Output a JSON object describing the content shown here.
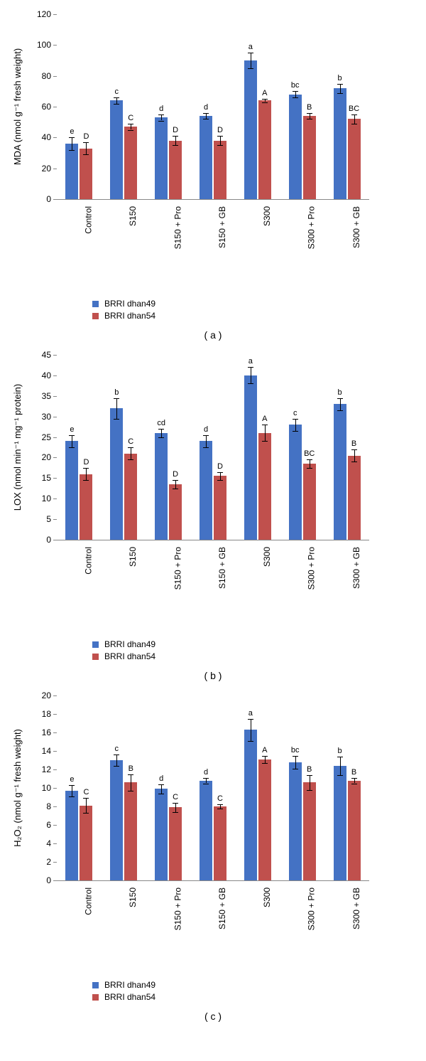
{
  "colors": {
    "series1": "#4472c4",
    "series2": "#c0504d",
    "axis": "#888888",
    "text": "#000000"
  },
  "legend": {
    "series1": "BRRI dhan49",
    "series2": "BRRI dhan54"
  },
  "categories": [
    "Control",
    "S150",
    "S150 + Pro",
    "S150 + GB",
    "S300",
    "S300 + Pro",
    "S300 + GB"
  ],
  "charts": [
    {
      "panel": "( a )",
      "ylabel": "MDA (nmol g⁻¹ fresh weight)",
      "ymin": 0,
      "ymax": 120,
      "ytick_step": 20,
      "series1": {
        "values": [
          36,
          64,
          53,
          54,
          90,
          68,
          72
        ],
        "errors": [
          4,
          2,
          2,
          2,
          5,
          2,
          3
        ],
        "letters": [
          "e",
          "c",
          "d",
          "d",
          "a",
          "bc",
          "b"
        ]
      },
      "series2": {
        "values": [
          33,
          47,
          38,
          38,
          64,
          54,
          52
        ],
        "errors": [
          4,
          2,
          3,
          3,
          1,
          2,
          3
        ],
        "letters": [
          "D",
          "C",
          "D",
          "D",
          "A",
          "B",
          "BC"
        ]
      }
    },
    {
      "panel": "( b )",
      "ylabel": "LOX (nmol min⁻¹ mg⁻¹ protein)",
      "ymin": 0,
      "ymax": 45,
      "ytick_step": 5,
      "series1": {
        "values": [
          24,
          32,
          26,
          24,
          40,
          28,
          33
        ],
        "errors": [
          1.5,
          2.5,
          1,
          1.5,
          2,
          1.5,
          1.5
        ],
        "letters": [
          "e",
          "b",
          "cd",
          "d",
          "a",
          "c",
          "b"
        ]
      },
      "series2": {
        "values": [
          16,
          21,
          13.5,
          15.5,
          26,
          18.5,
          20.5
        ],
        "errors": [
          1.5,
          1.5,
          1,
          1,
          2,
          1,
          1.5
        ],
        "letters": [
          "D",
          "C",
          "D",
          "D",
          "A",
          "BC",
          "B"
        ]
      }
    },
    {
      "panel": "( c )",
      "ylabel": "H₂O₂ (nmol g⁻¹ fresh weight)",
      "ymin": 0,
      "ymax": 20,
      "ytick_step": 2,
      "series1": {
        "values": [
          9.7,
          13.0,
          9.9,
          10.8,
          16.3,
          12.8,
          12.4
        ],
        "errors": [
          0.6,
          0.6,
          0.5,
          0.3,
          1.2,
          0.7,
          1.0
        ],
        "letters": [
          "e",
          "c",
          "d",
          "d",
          "a",
          "bc",
          "b"
        ]
      },
      "series2": {
        "values": [
          8.1,
          10.6,
          7.9,
          8.0,
          13.1,
          10.6,
          10.8
        ],
        "errors": [
          0.8,
          0.9,
          0.5,
          0.2,
          0.4,
          0.8,
          0.3
        ],
        "letters": [
          "C",
          "B",
          "C",
          "C",
          "A",
          "B",
          "B"
        ]
      }
    }
  ]
}
